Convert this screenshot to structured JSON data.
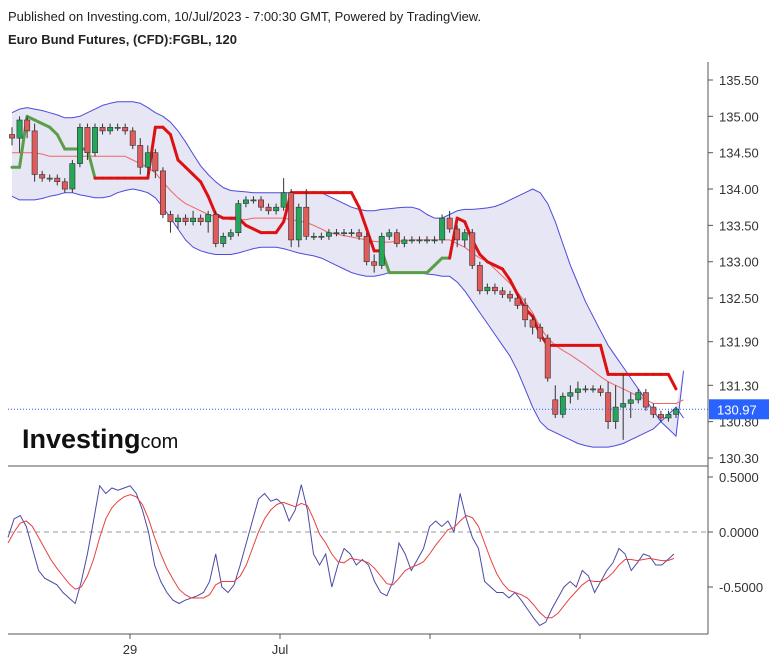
{
  "header": {
    "published": "Published on Investing.com, 10/Jul/2023 - 7:00:30 GMT, Powered by TradingView.",
    "instrument": "Euro Bund Futures, (CFD):FGBL, 120"
  },
  "logo": {
    "brand": "Investing",
    "suffix": ".com"
  },
  "colors": {
    "up": "#26a65b",
    "down": "#e15b5b",
    "band_fill": "#e6e6f5",
    "band_line": "#4b4bdc",
    "mid_line": "#e66",
    "supertrend_down": "#dd1111",
    "supertrend_up": "#5a9e4a",
    "price_label_bg": "#2962ff",
    "osc_main": "#4a4aa8",
    "osc_signal": "#e84040"
  },
  "chart_data": [
    {
      "type": "candlestick",
      "title": "Euro Bund Futures, (CFD):FGBL, 120",
      "y_ticks": [
        135.5,
        135.0,
        134.5,
        134.0,
        133.5,
        133.0,
        132.5,
        131.9,
        131.3,
        130.8,
        130.3
      ],
      "y_tick_labels": [
        "135.50",
        "135.00",
        "134.50",
        "134.00",
        "133.50",
        "133.00",
        "132.50",
        "131.90",
        "131.30",
        "130.80",
        "130.30"
      ],
      "ylim": [
        130.17,
        135.85
      ],
      "last_price": 130.97,
      "last_price_label": "130.97",
      "candles": [
        [
          134.75,
          134.85,
          134.6,
          134.7
        ],
        [
          134.7,
          135.0,
          134.5,
          134.95
        ],
        [
          134.95,
          135.0,
          134.7,
          134.8
        ],
        [
          134.8,
          134.9,
          134.1,
          134.2
        ],
        [
          134.2,
          134.25,
          134.1,
          134.15
        ],
        [
          134.15,
          134.2,
          134.1,
          134.15
        ],
        [
          134.15,
          134.2,
          134.05,
          134.1
        ],
        [
          134.1,
          134.15,
          133.95,
          134.0
        ],
        [
          134.0,
          134.4,
          133.95,
          134.35
        ],
        [
          134.35,
          134.9,
          134.3,
          134.85
        ],
        [
          134.85,
          134.9,
          134.4,
          134.5
        ],
        [
          134.5,
          134.9,
          134.45,
          134.85
        ],
        [
          134.85,
          134.9,
          134.75,
          134.8
        ],
        [
          134.8,
          134.9,
          134.75,
          134.85
        ],
        [
          134.85,
          134.9,
          134.8,
          134.85
        ],
        [
          134.85,
          134.9,
          134.75,
          134.8
        ],
        [
          134.8,
          134.85,
          134.55,
          134.6
        ],
        [
          134.6,
          134.7,
          134.2,
          134.3
        ],
        [
          134.3,
          134.6,
          134.2,
          134.5
        ],
        [
          134.5,
          134.55,
          134.15,
          134.25
        ],
        [
          134.25,
          134.3,
          133.6,
          133.65
        ],
        [
          133.65,
          133.7,
          133.4,
          133.55
        ],
        [
          133.55,
          133.65,
          133.45,
          133.6
        ],
        [
          133.6,
          133.65,
          133.5,
          133.55
        ],
        [
          133.55,
          133.7,
          133.5,
          133.6
        ],
        [
          133.6,
          133.65,
          133.5,
          133.55
        ],
        [
          133.55,
          133.7,
          133.4,
          133.65
        ],
        [
          133.65,
          133.7,
          133.2,
          133.25
        ],
        [
          133.25,
          133.4,
          133.2,
          133.35
        ],
        [
          133.35,
          133.45,
          133.3,
          133.4
        ],
        [
          133.4,
          133.85,
          133.35,
          133.8
        ],
        [
          133.8,
          133.9,
          133.75,
          133.85
        ],
        [
          133.85,
          133.9,
          133.8,
          133.85
        ],
        [
          133.85,
          133.9,
          133.7,
          133.75
        ],
        [
          133.75,
          133.8,
          133.65,
          133.7
        ],
        [
          133.7,
          133.8,
          133.65,
          133.75
        ],
        [
          133.75,
          134.15,
          133.7,
          133.95
        ],
        [
          133.95,
          134.0,
          133.2,
          133.3
        ],
        [
          133.3,
          133.8,
          133.2,
          133.75
        ],
        [
          133.75,
          134.0,
          133.3,
          133.35
        ],
        [
          133.35,
          133.4,
          133.3,
          133.35
        ],
        [
          133.35,
          133.4,
          133.3,
          133.35
        ],
        [
          133.35,
          133.45,
          133.3,
          133.4
        ],
        [
          133.4,
          133.45,
          133.35,
          133.4
        ],
        [
          133.4,
          133.45,
          133.35,
          133.4
        ],
        [
          133.4,
          133.45,
          133.35,
          133.4
        ],
        [
          133.4,
          133.45,
          133.3,
          133.35
        ],
        [
          133.35,
          133.4,
          132.95,
          133.0
        ],
        [
          133.0,
          133.1,
          132.85,
          132.95
        ],
        [
          132.95,
          133.4,
          132.9,
          133.35
        ],
        [
          133.35,
          133.45,
          133.3,
          133.4
        ],
        [
          133.4,
          133.45,
          133.2,
          133.25
        ],
        [
          133.25,
          133.35,
          133.2,
          133.3
        ],
        [
          133.3,
          133.35,
          133.25,
          133.3
        ],
        [
          133.3,
          133.35,
          133.25,
          133.3
        ],
        [
          133.3,
          133.35,
          133.25,
          133.3
        ],
        [
          133.3,
          133.35,
          133.25,
          133.3
        ],
        [
          133.3,
          133.65,
          133.25,
          133.6
        ],
        [
          133.6,
          133.7,
          133.4,
          133.45
        ],
        [
          133.45,
          133.5,
          133.2,
          133.3
        ],
        [
          133.3,
          133.45,
          133.2,
          133.4
        ],
        [
          133.4,
          133.45,
          132.9,
          132.95
        ],
        [
          132.95,
          133.0,
          132.55,
          132.6
        ],
        [
          132.6,
          132.7,
          132.55,
          132.65
        ],
        [
          132.65,
          132.7,
          132.55,
          132.6
        ],
        [
          132.6,
          132.65,
          132.5,
          132.55
        ],
        [
          132.55,
          132.6,
          132.45,
          132.5
        ],
        [
          132.5,
          132.55,
          132.35,
          132.4
        ],
        [
          132.4,
          132.5,
          132.1,
          132.2
        ],
        [
          132.2,
          132.25,
          132.0,
          132.1
        ],
        [
          132.1,
          132.15,
          131.9,
          131.95
        ],
        [
          131.95,
          132.0,
          131.35,
          131.4
        ],
        [
          131.1,
          131.3,
          130.85,
          130.9
        ],
        [
          130.9,
          131.2,
          130.85,
          131.15
        ],
        [
          131.15,
          131.3,
          131.05,
          131.2
        ],
        [
          131.2,
          131.35,
          131.1,
          131.25
        ],
        [
          131.25,
          131.3,
          131.2,
          131.25
        ],
        [
          131.25,
          131.3,
          131.2,
          131.25
        ],
        [
          131.25,
          131.3,
          131.15,
          131.2
        ],
        [
          131.2,
          131.35,
          130.7,
          130.8
        ],
        [
          130.8,
          131.3,
          130.7,
          131.0
        ],
        [
          131.0,
          131.45,
          130.55,
          131.05
        ],
        [
          131.05,
          131.2,
          130.85,
          131.1
        ],
        [
          131.1,
          131.25,
          131.05,
          131.2
        ],
        [
          131.2,
          131.25,
          130.95,
          131.0
        ],
        [
          131.0,
          131.05,
          130.85,
          130.9
        ],
        [
          130.9,
          130.95,
          130.8,
          130.85
        ],
        [
          130.85,
          130.95,
          130.8,
          130.9
        ],
        [
          130.9,
          131.0,
          130.85,
          130.97
        ]
      ],
      "supertrend": [
        134.3,
        134.3,
        135.0,
        134.95,
        134.9,
        134.85,
        134.75,
        134.55,
        134.55,
        134.55,
        134.55,
        134.15,
        134.15,
        134.15,
        134.15,
        134.15,
        134.15,
        134.15,
        134.15,
        134.85,
        134.85,
        134.75,
        134.4,
        134.3,
        134.2,
        134.1,
        133.9,
        133.65,
        133.6,
        133.6,
        133.6,
        133.5,
        133.45,
        133.4,
        133.4,
        133.4,
        133.55,
        133.95,
        133.95,
        133.95,
        133.95,
        133.95,
        133.95,
        133.95,
        133.95,
        133.95,
        133.75,
        133.45,
        133.15,
        133.15,
        132.85,
        132.85,
        132.85,
        132.85,
        132.85,
        132.85,
        132.95,
        133.05,
        133.05,
        133.6,
        133.55,
        133.3,
        133.1,
        133.0,
        132.95,
        132.9,
        132.75,
        132.55,
        132.35,
        132.25,
        132.0,
        131.85,
        131.85,
        131.85,
        131.85,
        131.85,
        131.85,
        131.85,
        131.85,
        131.45,
        131.45,
        131.45,
        131.45,
        131.45,
        131.45,
        131.45,
        131.45,
        131.45,
        131.25
      ],
      "supertrend_up_segments": [
        [
          0,
          11
        ],
        [
          49,
          58
        ]
      ],
      "band_upper": [
        135.05,
        135.1,
        135.12,
        135.1,
        135.08,
        135.05,
        135.02,
        134.98,
        134.98,
        135.0,
        135.05,
        135.1,
        135.15,
        135.18,
        135.2,
        135.2,
        135.2,
        135.18,
        135.12,
        135.05,
        135.0,
        134.92,
        134.8,
        134.65,
        134.48,
        134.32,
        134.2,
        134.1,
        134.02,
        133.98,
        133.97,
        133.96,
        133.95,
        133.95,
        133.95,
        133.95,
        133.95,
        133.95,
        133.95,
        133.95,
        133.95,
        133.95,
        133.9,
        133.85,
        133.8,
        133.75,
        133.72,
        133.7,
        133.7,
        133.72,
        133.73,
        133.74,
        133.75,
        133.75,
        133.72,
        133.65,
        133.6,
        133.6,
        133.65,
        133.7,
        133.72,
        133.72,
        133.73,
        133.74,
        133.76,
        133.8,
        133.85,
        133.9,
        133.95,
        134.0,
        133.95,
        133.8,
        133.55,
        133.25,
        132.95,
        132.7,
        132.45,
        132.25,
        132.05,
        131.85,
        131.7,
        131.55,
        131.4,
        131.25,
        131.1,
        130.95,
        130.8,
        130.7,
        130.6,
        131.5
      ],
      "band_lower": [
        133.9,
        133.85,
        133.85,
        133.85,
        133.87,
        133.9,
        133.92,
        133.95,
        133.95,
        133.92,
        133.9,
        133.88,
        133.88,
        133.9,
        133.95,
        133.98,
        134.0,
        133.98,
        133.95,
        133.88,
        133.75,
        133.6,
        133.45,
        133.3,
        133.2,
        133.15,
        133.12,
        133.1,
        133.1,
        133.1,
        133.12,
        133.15,
        133.18,
        133.2,
        133.2,
        133.2,
        133.18,
        133.15,
        133.12,
        133.1,
        133.08,
        133.05,
        133.0,
        132.95,
        132.9,
        132.85,
        132.82,
        132.8,
        132.8,
        132.82,
        132.85,
        132.85,
        132.85,
        132.85,
        132.85,
        132.83,
        132.82,
        132.8,
        132.8,
        132.72,
        132.6,
        132.45,
        132.3,
        132.15,
        132.0,
        131.85,
        131.7,
        131.5,
        131.25,
        131.0,
        130.8,
        130.7,
        130.65,
        130.6,
        130.55,
        130.5,
        130.47,
        130.45,
        130.45,
        130.45,
        130.47,
        130.5,
        130.55,
        130.6,
        130.65,
        130.7,
        130.8,
        130.9,
        131.0,
        130.85
      ],
      "band_mid": [
        134.5,
        134.5,
        134.5,
        134.5,
        134.48,
        134.45,
        134.45,
        134.45,
        134.45,
        134.45,
        134.45,
        134.45,
        134.45,
        134.45,
        134.45,
        134.45,
        134.4,
        134.35,
        134.3,
        134.22,
        134.1,
        133.98,
        133.88,
        133.8,
        133.75,
        133.7,
        133.65,
        133.62,
        133.6,
        133.58,
        133.58,
        133.58,
        133.6,
        133.6,
        133.6,
        133.6,
        133.6,
        133.58,
        133.56,
        133.54,
        133.5,
        133.45,
        133.4,
        133.38,
        133.36,
        133.34,
        133.32,
        133.3,
        133.28,
        133.27,
        133.27,
        133.28,
        133.29,
        133.3,
        133.3,
        133.3,
        133.3,
        133.3,
        133.3,
        133.25,
        133.2,
        133.12,
        133.05,
        133.0,
        132.9,
        132.8,
        132.7,
        132.58,
        132.45,
        132.3,
        132.1,
        131.95,
        131.85,
        131.78,
        131.72,
        131.65,
        131.58,
        131.5,
        131.42,
        131.35,
        131.3,
        131.25,
        131.2,
        131.15,
        131.1,
        131.05,
        131.05,
        131.05,
        131.05,
        131.1
      ]
    },
    {
      "type": "line",
      "title": "",
      "y_ticks": [
        0.5,
        0.0,
        -0.5
      ],
      "y_tick_labels": [
        "0.5000",
        "0.0000",
        "-0.5000"
      ],
      "ylim": [
        -0.88,
        0.55
      ],
      "x_tick_labels": [
        "29",
        "Jul"
      ],
      "zero_line": true,
      "series": [
        {
          "values": [
            -0.05,
            0.12,
            0.15,
            0.05,
            -0.15,
            -0.35,
            -0.42,
            -0.45,
            -0.48,
            -0.55,
            -0.6,
            -0.65,
            -0.45,
            -0.2,
            0.1,
            0.42,
            0.35,
            0.4,
            0.38,
            0.4,
            0.42,
            0.35,
            0.2,
            0.0,
            -0.3,
            -0.45,
            -0.55,
            -0.62,
            -0.65,
            -0.62,
            -0.6,
            -0.58,
            -0.55,
            -0.45,
            -0.2,
            -0.5,
            -0.55,
            -0.48,
            -0.3,
            -0.1,
            0.1,
            0.3,
            0.35,
            0.28,
            0.3,
            0.25,
            0.1,
            0.2,
            0.43,
            0.2,
            -0.2,
            -0.3,
            -0.2,
            -0.5,
            -0.3,
            -0.15,
            -0.2,
            -0.3,
            -0.25,
            -0.3,
            -0.45,
            -0.55,
            -0.58,
            -0.45,
            -0.1,
            -0.2,
            -0.35,
            -0.25,
            -0.15,
            0.05,
            0.1,
            0.05,
            0.1,
            0.0,
            0.35,
            0.12,
            -0.05,
            -0.15,
            -0.45,
            -0.5,
            -0.55,
            -0.55,
            -0.6,
            -0.55,
            -0.62,
            -0.7,
            -0.78,
            -0.85,
            -0.82,
            -0.7,
            -0.6,
            -0.5,
            -0.45,
            -0.5,
            -0.35,
            -0.4,
            -0.55,
            -0.45,
            -0.35,
            -0.28,
            -0.15,
            -0.2,
            -0.35,
            -0.28,
            -0.2,
            -0.22,
            -0.3,
            -0.3,
            -0.25,
            -0.2
          ]
        },
        {
          "values": [
            -0.1,
            0.0,
            0.08,
            0.1,
            0.05,
            -0.05,
            -0.15,
            -0.25,
            -0.33,
            -0.4,
            -0.47,
            -0.52,
            -0.5,
            -0.4,
            -0.25,
            -0.05,
            0.12,
            0.22,
            0.28,
            0.32,
            0.34,
            0.32,
            0.25,
            0.12,
            -0.05,
            -0.2,
            -0.33,
            -0.43,
            -0.52,
            -0.57,
            -0.6,
            -0.6,
            -0.6,
            -0.57,
            -0.48,
            -0.45,
            -0.45,
            -0.45,
            -0.4,
            -0.3,
            -0.15,
            0.0,
            0.12,
            0.2,
            0.25,
            0.27,
            0.25,
            0.23,
            0.26,
            0.24,
            0.12,
            -0.02,
            -0.1,
            -0.2,
            -0.27,
            -0.28,
            -0.24,
            -0.25,
            -0.26,
            -0.28,
            -0.33,
            -0.4,
            -0.47,
            -0.48,
            -0.42,
            -0.35,
            -0.32,
            -0.3,
            -0.27,
            -0.2,
            -0.12,
            -0.05,
            0.02,
            0.04,
            0.1,
            0.15,
            0.13,
            0.05,
            -0.1,
            -0.25,
            -0.38,
            -0.47,
            -0.53,
            -0.55,
            -0.57,
            -0.6,
            -0.66,
            -0.73,
            -0.78,
            -0.78,
            -0.74,
            -0.67,
            -0.6,
            -0.54,
            -0.48,
            -0.44,
            -0.45,
            -0.45,
            -0.42,
            -0.37,
            -0.3,
            -0.25,
            -0.25,
            -0.26,
            -0.25,
            -0.24,
            -0.25,
            -0.26,
            -0.26,
            -0.24
          ]
        }
      ]
    }
  ]
}
